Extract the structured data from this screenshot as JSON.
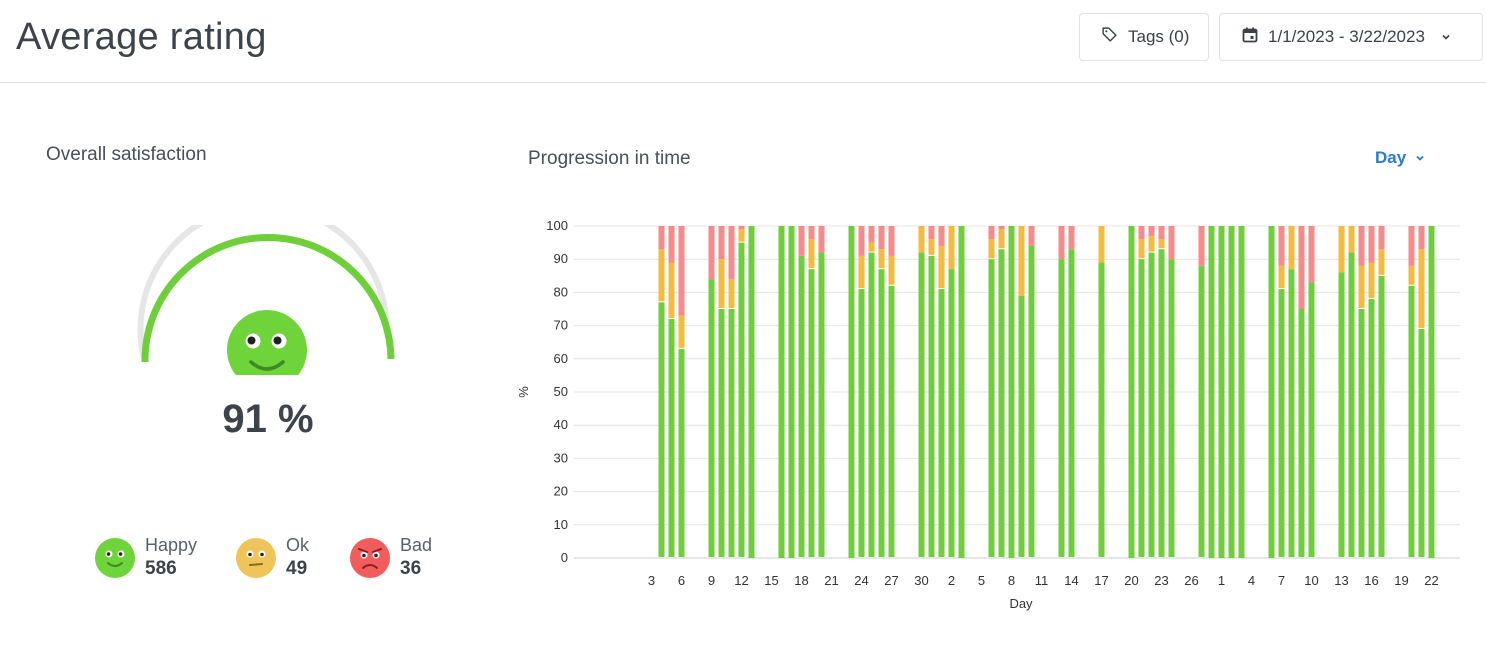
{
  "header": {
    "title": "Average rating",
    "tags_label": "Tags (0)",
    "date_range": "1/1/2023 - 3/22/2023"
  },
  "satisfaction": {
    "title": "Overall satisfaction",
    "percent_value": 91,
    "percent_label": "91 %",
    "legend": [
      {
        "name": "Happy",
        "count": "586"
      },
      {
        "name": "Ok",
        "count": "49"
      },
      {
        "name": "Bad",
        "count": "36"
      }
    ]
  },
  "progression": {
    "title": "Progression in time",
    "period_label": "Day"
  },
  "colors": {
    "happy": "#6fcf3a",
    "ok": "#f4bb3c",
    "bad": "#f78a8a",
    "accent": "#2a7ad6",
    "gauge_track": "#e6e6e6"
  },
  "chart_data": {
    "type": "bar",
    "stacked": true,
    "title": "Progression in time",
    "xlabel": "Day",
    "ylabel": "%",
    "ylim": [
      0,
      100
    ],
    "yticks": [
      0,
      10,
      20,
      30,
      40,
      50,
      60,
      70,
      80,
      90,
      100
    ],
    "grid": true,
    "categories": [
      "3",
      "4",
      "5",
      "6",
      "7",
      "8",
      "9",
      "10",
      "11",
      "12",
      "13",
      "14",
      "15",
      "16",
      "17",
      "18",
      "19",
      "20",
      "21",
      "22",
      "23",
      "24",
      "25",
      "26",
      "27",
      "28",
      "29",
      "30",
      "31",
      "1",
      "2",
      "3",
      "4",
      "5",
      "6",
      "7",
      "8",
      "9",
      "10",
      "11",
      "12",
      "13",
      "14",
      "15",
      "16",
      "17",
      "18",
      "19",
      "20",
      "21",
      "22",
      "23",
      "24",
      "25",
      "26",
      "27",
      "28",
      "1",
      "2",
      "3",
      "4",
      "5",
      "6",
      "7",
      "8",
      "9",
      "10",
      "11",
      "12",
      "13",
      "14",
      "15",
      "16",
      "17",
      "18",
      "19",
      "20",
      "21",
      "22"
    ],
    "tick_labels": [
      "3",
      "6",
      "9",
      "12",
      "15",
      "18",
      "21",
      "24",
      "27",
      "30",
      "2",
      "5",
      "8",
      "11",
      "14",
      "17",
      "20",
      "23",
      "26",
      "1",
      "4",
      "7",
      "10",
      "13",
      "16",
      "19",
      "22"
    ],
    "series": [
      {
        "name": "Happy",
        "values": [
          null,
          77,
          72,
          63,
          null,
          null,
          84,
          75,
          75,
          95,
          100,
          null,
          null,
          100,
          100,
          91,
          87,
          92,
          null,
          null,
          100,
          81,
          92,
          87,
          82,
          null,
          null,
          92,
          91,
          81,
          87,
          100,
          null,
          null,
          90,
          93,
          100,
          79,
          94,
          null,
          null,
          90,
          93,
          null,
          null,
          89,
          null,
          null,
          100,
          90,
          92,
          93,
          90,
          null,
          null,
          88,
          100,
          100,
          100,
          100,
          null,
          null,
          100,
          81,
          87,
          75,
          83,
          null,
          null,
          86,
          92,
          75,
          78,
          85,
          null,
          null,
          82,
          69,
          100
        ]
      },
      {
        "name": "Ok",
        "values": [
          null,
          16,
          17,
          10,
          null,
          null,
          0,
          15,
          9,
          4,
          0,
          null,
          null,
          0,
          0,
          0,
          9,
          0,
          null,
          null,
          0,
          10,
          3,
          6,
          9,
          null,
          null,
          8,
          5,
          13,
          13,
          0,
          null,
          null,
          6,
          6,
          0,
          21,
          0,
          null,
          null,
          0,
          0,
          null,
          null,
          11,
          null,
          null,
          0,
          6,
          5,
          3,
          0,
          null,
          null,
          0,
          0,
          0,
          0,
          0,
          null,
          null,
          0,
          7,
          13,
          0,
          0,
          null,
          null,
          14,
          8,
          13,
          11,
          8,
          null,
          null,
          6,
          24,
          0
        ]
      },
      {
        "name": "Bad",
        "values": [
          null,
          7,
          11,
          27,
          null,
          null,
          16,
          10,
          16,
          1,
          0,
          null,
          null,
          0,
          0,
          9,
          4,
          8,
          null,
          null,
          0,
          9,
          5,
          7,
          9,
          null,
          null,
          0,
          4,
          6,
          0,
          0,
          null,
          null,
          4,
          1,
          0,
          0,
          6,
          null,
          null,
          10,
          7,
          null,
          null,
          0,
          null,
          null,
          0,
          4,
          3,
          4,
          10,
          null,
          null,
          12,
          0,
          0,
          0,
          0,
          null,
          null,
          0,
          12,
          0,
          25,
          17,
          null,
          null,
          0,
          0,
          12,
          11,
          7,
          null,
          null,
          12,
          7,
          0
        ]
      }
    ]
  }
}
